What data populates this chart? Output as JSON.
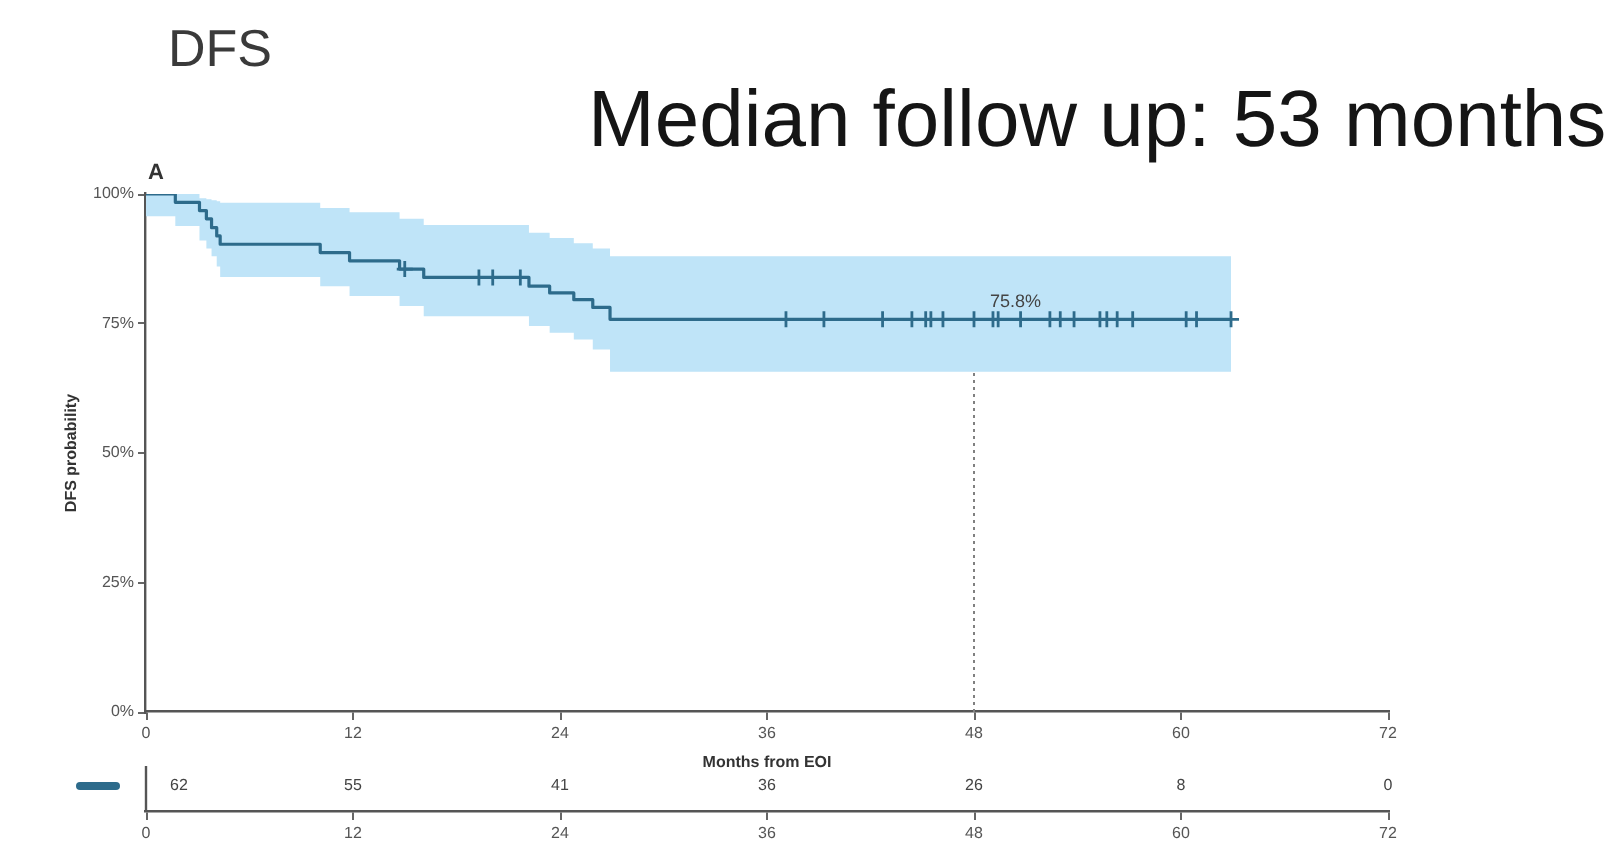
{
  "chart_data": {
    "type": "step",
    "title": "DFS",
    "subtitle": "Median follow up: 53 months",
    "xlabel": "Months from EOI",
    "ylabel": "DFS probability",
    "annotations": [
      "A",
      {
        "text": "75.8%",
        "x": 48,
        "y": 75.8
      },
      "62",
      "55",
      "41",
      "36",
      "26",
      "8",
      "0"
    ],
    "series": [
      {
        "type": "step",
        "color": "#2d6b8b",
        "x": [
          0,
          1.7,
          3.1,
          3.5,
          3.8,
          4.1,
          4.3,
          10.1,
          11.8,
          14.7,
          16.1,
          22.2,
          23.4,
          24.8,
          25.9,
          26.9,
          62.9
        ],
        "values": [
          100,
          98.4,
          96.8,
          95.2,
          93.5,
          91.9,
          90.3,
          88.7,
          87.1,
          85.5,
          83.9,
          82.2,
          80.9,
          79.6,
          78.1,
          75.8,
          75.8
        ],
        "lower": [
          95.7,
          93.8,
          91,
          89.5,
          88,
          86,
          84,
          82.2,
          80.3,
          78.4,
          76.4,
          74.5,
          73.2,
          71.9,
          70,
          65.7,
          65.7
        ],
        "upper": [
          100,
          100,
          99.2,
          99,
          98.8,
          98.6,
          98.3,
          97.3,
          96.5,
          95.2,
          94,
          92.5,
          91.5,
          90.5,
          89.5,
          88,
          88
        ]
      },
      {
        "type": "scatter",
        "color": "#2d6b8b",
        "marker": "cross",
        "x": [
          15.0,
          19.3,
          20.1,
          21.7,
          37.1,
          39.3,
          42.7,
          44.4,
          45.2,
          45.5,
          46.2,
          48.0,
          49.1,
          49.4,
          50.7,
          52.4,
          53.0,
          53.8,
          55.3,
          55.7,
          56.3,
          57.2,
          60.3,
          60.9,
          62.9
        ],
        "values": [
          85.5,
          83.9,
          83.9,
          83.9,
          75.8,
          75.8,
          75.8,
          75.8,
          75.8,
          75.8,
          75.8,
          75.8,
          75.8,
          75.8,
          75.8,
          75.8,
          75.8,
          75.8,
          75.8,
          75.8,
          75.8,
          75.8,
          75.8,
          75.8,
          75.8
        ]
      }
    ],
    "xlim": [
      0,
      72
    ],
    "xticks": [
      0,
      12,
      24,
      36,
      48,
      60,
      72
    ],
    "x2lim": [
      0,
      72
    ],
    "x2ticks": [
      0,
      12,
      24,
      36,
      48,
      60,
      72
    ],
    "ylim": [
      0,
      100
    ],
    "yticks": [
      {
        "value": 0,
        "label": "0%"
      },
      {
        "value": 25,
        "label": "25%"
      },
      {
        "value": 50,
        "label": "50%"
      },
      {
        "value": 75,
        "label": "75%"
      },
      {
        "value": 100,
        "label": "100%"
      }
    ],
    "ref_lines": [
      {
        "axis": "x",
        "value": 48,
        "line_style": "dotted",
        "color": "#808080"
      }
    ]
  }
}
